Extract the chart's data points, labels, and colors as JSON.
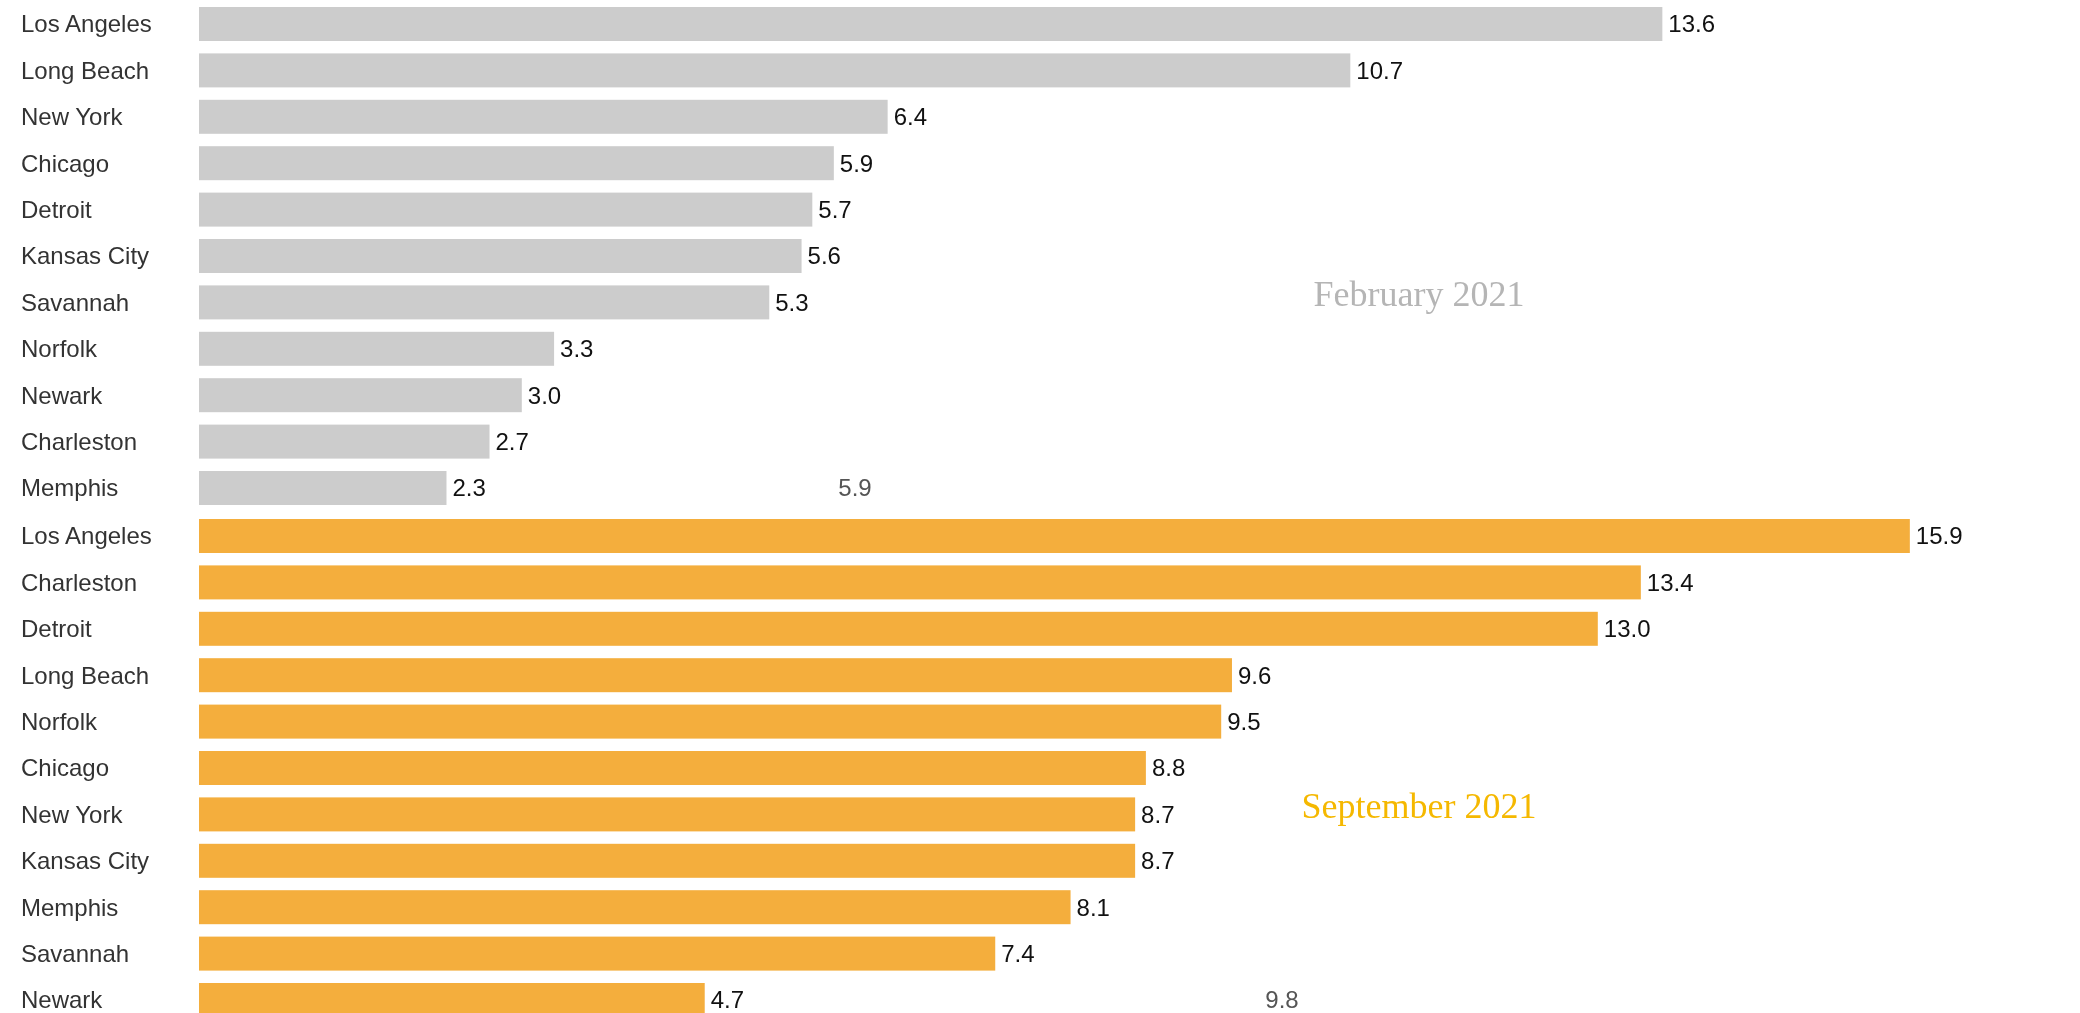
{
  "chart_data": [
    {
      "type": "bar",
      "orientation": "horizontal",
      "title": "February 2021",
      "categories": [
        "Los Angeles",
        "Long Beach",
        "New York",
        "Chicago",
        "Detroit",
        "Kansas City",
        "Savannah",
        "Norfolk",
        "Newark",
        "Charleston",
        "Memphis"
      ],
      "values": [
        13.6,
        10.7,
        6.4,
        5.9,
        5.7,
        5.6,
        5.3,
        3.3,
        3.0,
        2.7,
        2.3
      ],
      "color": "#cccccc",
      "value_labels": [
        "13.6",
        "10.7",
        "6.4",
        "5.9",
        "5.7",
        "5.6",
        "5.3",
        "3.3",
        "3.0",
        "2.7",
        "2.3"
      ],
      "annotations": [
        "5.9"
      ]
    },
    {
      "type": "bar",
      "orientation": "horizontal",
      "title": "September 2021",
      "categories": [
        "Los Angeles",
        "Charleston",
        "Detroit",
        "Long Beach",
        "Norfolk",
        "Chicago",
        "New York",
        "Kansas City",
        "Memphis",
        "Savannah",
        "Newark"
      ],
      "values": [
        15.9,
        13.4,
        13.0,
        9.6,
        9.5,
        8.8,
        8.7,
        8.7,
        8.1,
        7.4,
        4.7
      ],
      "color": "#f4ae3d",
      "value_labels": [
        "15.9",
        "13.4",
        "13.0",
        "9.6",
        "9.5",
        "8.8",
        "8.7",
        "8.7",
        "8.1",
        "7.4",
        "4.7"
      ],
      "annotations": [
        "9.8"
      ]
    }
  ]
}
